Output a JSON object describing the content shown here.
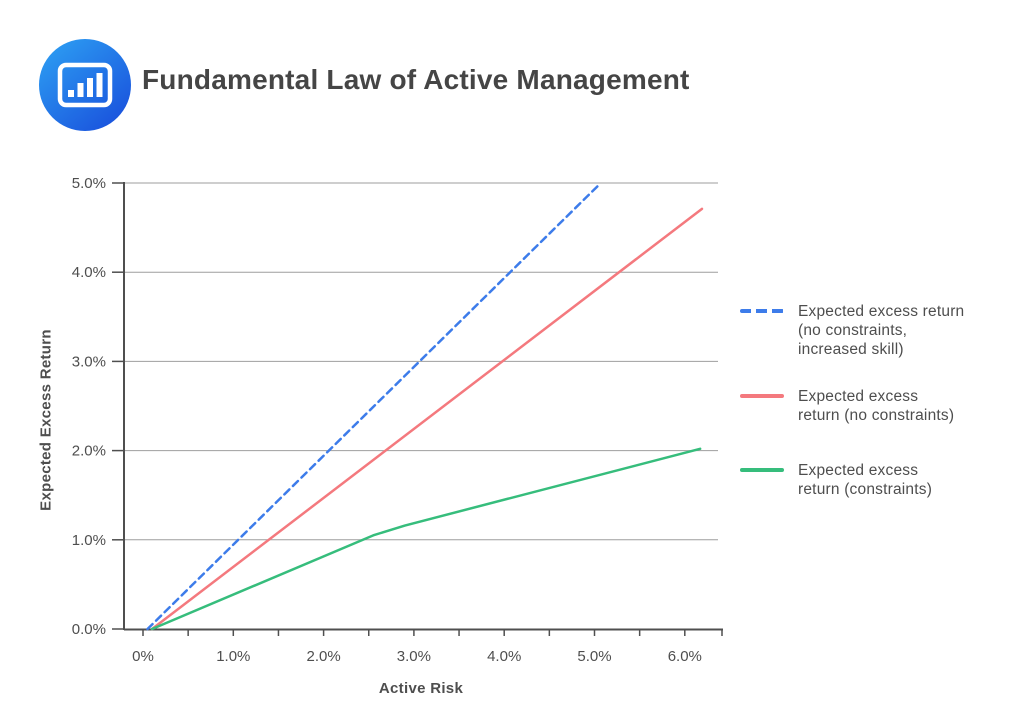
{
  "header": {
    "title": "Fundamental Law of Active Management",
    "logo": {
      "icon": "bar-chart-icon",
      "gradient_start": "#2ea3f4",
      "gradient_end": "#1a53dd"
    }
  },
  "chart_data": {
    "type": "line",
    "title": "Fundamental Law of Active Management",
    "xlabel": "Active Risk",
    "ylabel": "Expected Excess Return",
    "grid": "horizontal",
    "legend_position": "right",
    "x_axis": {
      "min": 0,
      "max": 6.37,
      "minor_tick_step": 0.5,
      "ticks": [
        {
          "value": 0,
          "label": "0%"
        },
        {
          "value": 1,
          "label": "1.0%"
        },
        {
          "value": 2,
          "label": "2.0%"
        },
        {
          "value": 3,
          "label": "3.0%"
        },
        {
          "value": 4,
          "label": "4.0%"
        },
        {
          "value": 5,
          "label": "5.0%"
        },
        {
          "value": 6,
          "label": "6.0%"
        }
      ]
    },
    "y_axis": {
      "min": 0,
      "max": 5,
      "ticks": [
        {
          "value": 0,
          "label": "0.0%"
        },
        {
          "value": 1,
          "label": "1.0%"
        },
        {
          "value": 2,
          "label": "2.0%"
        },
        {
          "value": 3,
          "label": "3.0%"
        },
        {
          "value": 4,
          "label": "4.0%"
        },
        {
          "value": 5,
          "label": "5.0%"
        }
      ]
    },
    "series": [
      {
        "name": "Expected excess return (no constraints, increased skill)",
        "legend_label": "Expected excess return\n(no constraints,\n increased skill)",
        "color": "#3d7cea",
        "style": "dashed",
        "points": [
          [
            0.05,
            0.0
          ],
          [
            5.07,
            5.0
          ]
        ]
      },
      {
        "name": "Expected excess return (no constraints)",
        "legend_label": "Expected excess\nreturn (no constraints)",
        "color": "#f4797e",
        "style": "solid",
        "points": [
          [
            0.1,
            0.0
          ],
          [
            6.19,
            4.71
          ]
        ]
      },
      {
        "name": "Expected excess return (constraints)",
        "legend_label": "Expected excess\nreturn (constraints)",
        "color": "#36bd7c",
        "style": "solid",
        "points": [
          [
            0.1,
            0.0
          ],
          [
            2.55,
            1.05
          ],
          [
            2.9,
            1.16
          ],
          [
            6.17,
            2.02
          ]
        ]
      }
    ],
    "colors": {
      "gridline": "#9e9e9e",
      "axis": "#4f4f4f",
      "tick_text": "#4e4e4e"
    }
  }
}
